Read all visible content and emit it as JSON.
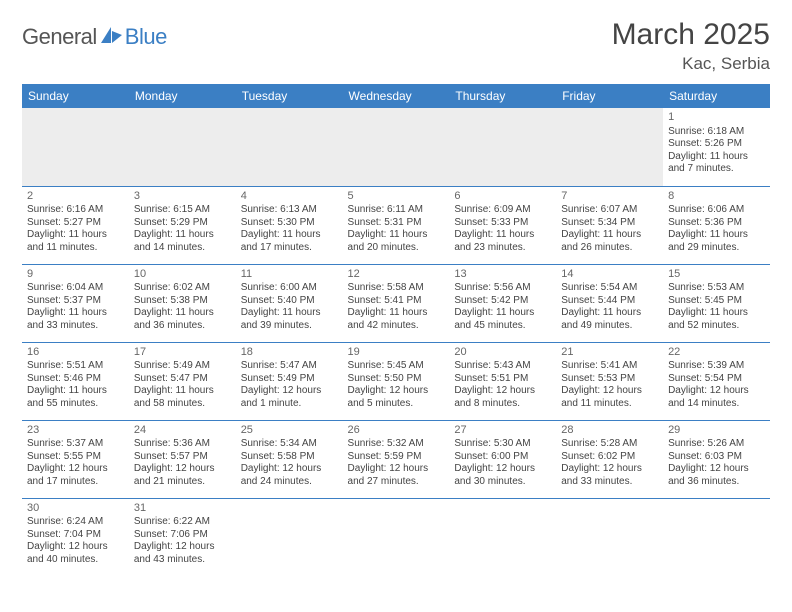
{
  "logo": {
    "part1": "General",
    "part2": "Blue"
  },
  "title": "March 2025",
  "location": "Kac, Serbia",
  "colors": {
    "header_bg": "#3b7fc4",
    "header_fg": "#ffffff",
    "border": "#3b7fc4",
    "empty_bg": "#ededed",
    "page_bg": "#ffffff",
    "text": "#444444"
  },
  "weekdays": [
    "Sunday",
    "Monday",
    "Tuesday",
    "Wednesday",
    "Thursday",
    "Friday",
    "Saturday"
  ],
  "cells": [
    [
      null,
      null,
      null,
      null,
      null,
      null,
      {
        "n": "1",
        "sr": "Sunrise: 6:18 AM",
        "ss": "Sunset: 5:26 PM",
        "dl1": "Daylight: 11 hours",
        "dl2": "and 7 minutes."
      }
    ],
    [
      {
        "n": "2",
        "sr": "Sunrise: 6:16 AM",
        "ss": "Sunset: 5:27 PM",
        "dl1": "Daylight: 11 hours",
        "dl2": "and 11 minutes."
      },
      {
        "n": "3",
        "sr": "Sunrise: 6:15 AM",
        "ss": "Sunset: 5:29 PM",
        "dl1": "Daylight: 11 hours",
        "dl2": "and 14 minutes."
      },
      {
        "n": "4",
        "sr": "Sunrise: 6:13 AM",
        "ss": "Sunset: 5:30 PM",
        "dl1": "Daylight: 11 hours",
        "dl2": "and 17 minutes."
      },
      {
        "n": "5",
        "sr": "Sunrise: 6:11 AM",
        "ss": "Sunset: 5:31 PM",
        "dl1": "Daylight: 11 hours",
        "dl2": "and 20 minutes."
      },
      {
        "n": "6",
        "sr": "Sunrise: 6:09 AM",
        "ss": "Sunset: 5:33 PM",
        "dl1": "Daylight: 11 hours",
        "dl2": "and 23 minutes."
      },
      {
        "n": "7",
        "sr": "Sunrise: 6:07 AM",
        "ss": "Sunset: 5:34 PM",
        "dl1": "Daylight: 11 hours",
        "dl2": "and 26 minutes."
      },
      {
        "n": "8",
        "sr": "Sunrise: 6:06 AM",
        "ss": "Sunset: 5:36 PM",
        "dl1": "Daylight: 11 hours",
        "dl2": "and 29 minutes."
      }
    ],
    [
      {
        "n": "9",
        "sr": "Sunrise: 6:04 AM",
        "ss": "Sunset: 5:37 PM",
        "dl1": "Daylight: 11 hours",
        "dl2": "and 33 minutes."
      },
      {
        "n": "10",
        "sr": "Sunrise: 6:02 AM",
        "ss": "Sunset: 5:38 PM",
        "dl1": "Daylight: 11 hours",
        "dl2": "and 36 minutes."
      },
      {
        "n": "11",
        "sr": "Sunrise: 6:00 AM",
        "ss": "Sunset: 5:40 PM",
        "dl1": "Daylight: 11 hours",
        "dl2": "and 39 minutes."
      },
      {
        "n": "12",
        "sr": "Sunrise: 5:58 AM",
        "ss": "Sunset: 5:41 PM",
        "dl1": "Daylight: 11 hours",
        "dl2": "and 42 minutes."
      },
      {
        "n": "13",
        "sr": "Sunrise: 5:56 AM",
        "ss": "Sunset: 5:42 PM",
        "dl1": "Daylight: 11 hours",
        "dl2": "and 45 minutes."
      },
      {
        "n": "14",
        "sr": "Sunrise: 5:54 AM",
        "ss": "Sunset: 5:44 PM",
        "dl1": "Daylight: 11 hours",
        "dl2": "and 49 minutes."
      },
      {
        "n": "15",
        "sr": "Sunrise: 5:53 AM",
        "ss": "Sunset: 5:45 PM",
        "dl1": "Daylight: 11 hours",
        "dl2": "and 52 minutes."
      }
    ],
    [
      {
        "n": "16",
        "sr": "Sunrise: 5:51 AM",
        "ss": "Sunset: 5:46 PM",
        "dl1": "Daylight: 11 hours",
        "dl2": "and 55 minutes."
      },
      {
        "n": "17",
        "sr": "Sunrise: 5:49 AM",
        "ss": "Sunset: 5:47 PM",
        "dl1": "Daylight: 11 hours",
        "dl2": "and 58 minutes."
      },
      {
        "n": "18",
        "sr": "Sunrise: 5:47 AM",
        "ss": "Sunset: 5:49 PM",
        "dl1": "Daylight: 12 hours",
        "dl2": "and 1 minute."
      },
      {
        "n": "19",
        "sr": "Sunrise: 5:45 AM",
        "ss": "Sunset: 5:50 PM",
        "dl1": "Daylight: 12 hours",
        "dl2": "and 5 minutes."
      },
      {
        "n": "20",
        "sr": "Sunrise: 5:43 AM",
        "ss": "Sunset: 5:51 PM",
        "dl1": "Daylight: 12 hours",
        "dl2": "and 8 minutes."
      },
      {
        "n": "21",
        "sr": "Sunrise: 5:41 AM",
        "ss": "Sunset: 5:53 PM",
        "dl1": "Daylight: 12 hours",
        "dl2": "and 11 minutes."
      },
      {
        "n": "22",
        "sr": "Sunrise: 5:39 AM",
        "ss": "Sunset: 5:54 PM",
        "dl1": "Daylight: 12 hours",
        "dl2": "and 14 minutes."
      }
    ],
    [
      {
        "n": "23",
        "sr": "Sunrise: 5:37 AM",
        "ss": "Sunset: 5:55 PM",
        "dl1": "Daylight: 12 hours",
        "dl2": "and 17 minutes."
      },
      {
        "n": "24",
        "sr": "Sunrise: 5:36 AM",
        "ss": "Sunset: 5:57 PM",
        "dl1": "Daylight: 12 hours",
        "dl2": "and 21 minutes."
      },
      {
        "n": "25",
        "sr": "Sunrise: 5:34 AM",
        "ss": "Sunset: 5:58 PM",
        "dl1": "Daylight: 12 hours",
        "dl2": "and 24 minutes."
      },
      {
        "n": "26",
        "sr": "Sunrise: 5:32 AM",
        "ss": "Sunset: 5:59 PM",
        "dl1": "Daylight: 12 hours",
        "dl2": "and 27 minutes."
      },
      {
        "n": "27",
        "sr": "Sunrise: 5:30 AM",
        "ss": "Sunset: 6:00 PM",
        "dl1": "Daylight: 12 hours",
        "dl2": "and 30 minutes."
      },
      {
        "n": "28",
        "sr": "Sunrise: 5:28 AM",
        "ss": "Sunset: 6:02 PM",
        "dl1": "Daylight: 12 hours",
        "dl2": "and 33 minutes."
      },
      {
        "n": "29",
        "sr": "Sunrise: 5:26 AM",
        "ss": "Sunset: 6:03 PM",
        "dl1": "Daylight: 12 hours",
        "dl2": "and 36 minutes."
      }
    ],
    [
      {
        "n": "30",
        "sr": "Sunrise: 6:24 AM",
        "ss": "Sunset: 7:04 PM",
        "dl1": "Daylight: 12 hours",
        "dl2": "and 40 minutes."
      },
      {
        "n": "31",
        "sr": "Sunrise: 6:22 AM",
        "ss": "Sunset: 7:06 PM",
        "dl1": "Daylight: 12 hours",
        "dl2": "and 43 minutes."
      },
      null,
      null,
      null,
      null,
      null
    ]
  ]
}
